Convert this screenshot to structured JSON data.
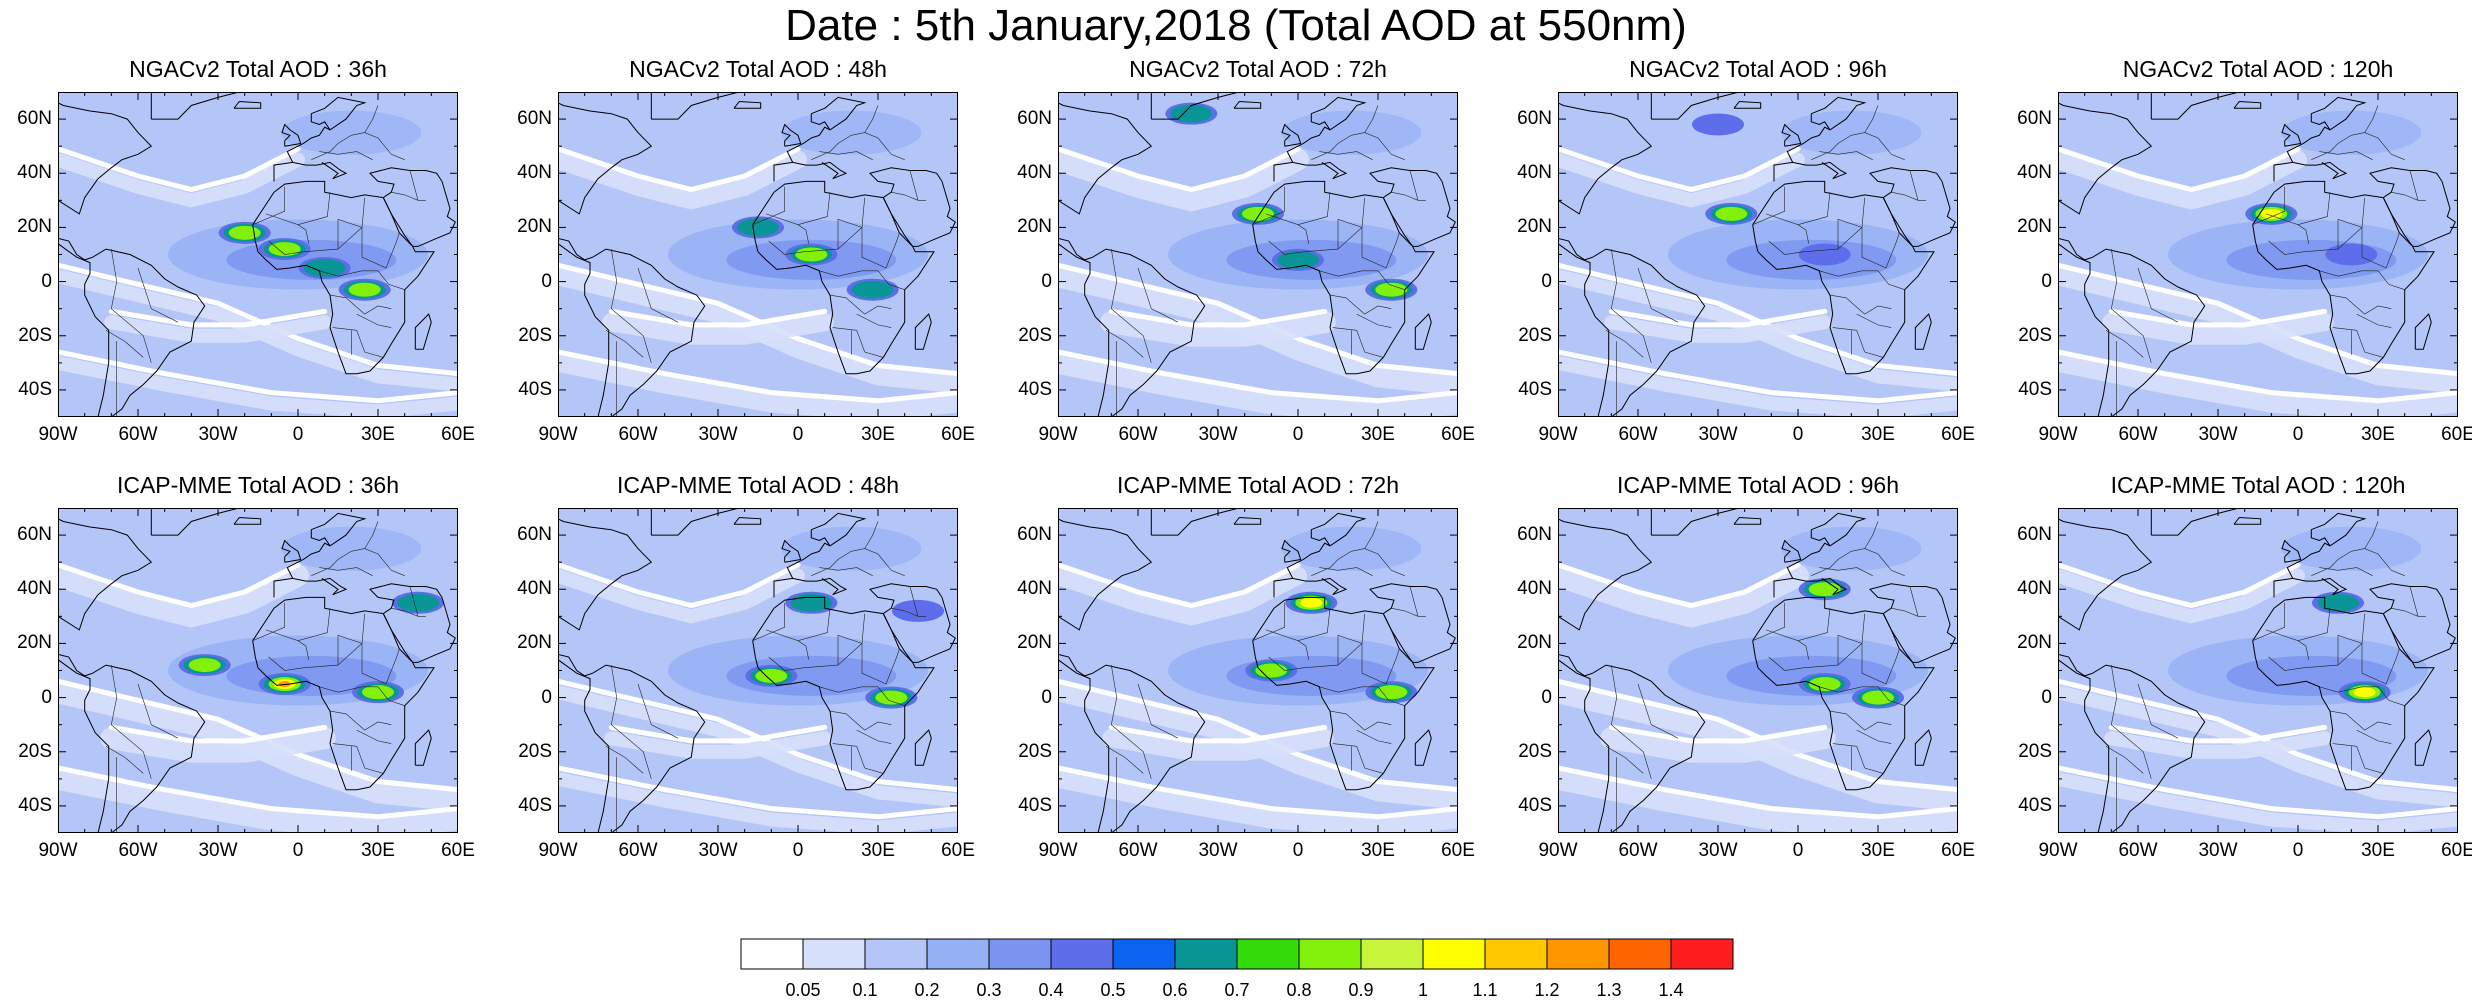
{
  "title": "Date : 5th January,2018 (Total AOD at 550nm)",
  "panels": [
    {
      "title": "NGACv2 Total AOD : 36h",
      "model": "NGACv2",
      "lead": "36h",
      "hotspots": [
        [
          -20,
          18,
          1.0
        ],
        [
          -5,
          12,
          0.9
        ],
        [
          25,
          -3,
          0.9
        ],
        [
          10,
          5,
          0.7
        ]
      ]
    },
    {
      "title": "NGACv2 Total AOD : 48h",
      "model": "NGACv2",
      "lead": "48h",
      "hotspots": [
        [
          -15,
          20,
          0.8
        ],
        [
          5,
          10,
          0.9
        ],
        [
          28,
          -3,
          0.8
        ]
      ]
    },
    {
      "title": "NGACv2 Total AOD : 72h",
      "model": "NGACv2",
      "lead": "72h",
      "hotspots": [
        [
          -40,
          62,
          0.8
        ],
        [
          -15,
          25,
          0.9
        ],
        [
          0,
          8,
          0.7
        ],
        [
          35,
          -3,
          0.9
        ]
      ]
    },
    {
      "title": "NGACv2 Total AOD : 96h",
      "model": "NGACv2",
      "lead": "96h",
      "hotspots": [
        [
          -25,
          25,
          1.0
        ],
        [
          -30,
          58,
          0.6
        ],
        [
          10,
          10,
          0.6
        ]
      ]
    },
    {
      "title": "NGACv2 Total AOD : 120h",
      "model": "NGACv2",
      "lead": "120h",
      "hotspots": [
        [
          -10,
          25,
          1.1
        ],
        [
          20,
          10,
          0.6
        ]
      ]
    },
    {
      "title": "ICAP-MME Total AOD : 36h",
      "model": "ICAP-MME",
      "lead": "36h",
      "hotspots": [
        [
          -35,
          12,
          0.9
        ],
        [
          -5,
          5,
          1.3
        ],
        [
          30,
          2,
          0.9
        ],
        [
          45,
          35,
          0.7
        ]
      ]
    },
    {
      "title": "ICAP-MME Total AOD : 48h",
      "model": "ICAP-MME",
      "lead": "48h",
      "hotspots": [
        [
          -10,
          8,
          1.0
        ],
        [
          35,
          0,
          0.9
        ],
        [
          5,
          35,
          0.8
        ],
        [
          45,
          32,
          0.6
        ]
      ]
    },
    {
      "title": "ICAP-MME Total AOD : 72h",
      "model": "ICAP-MME",
      "lead": "72h",
      "hotspots": [
        [
          5,
          35,
          1.2
        ],
        [
          -10,
          10,
          0.9
        ],
        [
          35,
          2,
          0.9
        ]
      ]
    },
    {
      "title": "ICAP-MME Total AOD : 96h",
      "model": "ICAP-MME",
      "lead": "96h",
      "hotspots": [
        [
          10,
          40,
          0.9
        ],
        [
          10,
          5,
          1.0
        ],
        [
          30,
          0,
          1.0
        ]
      ]
    },
    {
      "title": "ICAP-MME Total AOD : 120h",
      "model": "ICAP-MME",
      "lead": "120h",
      "hotspots": [
        [
          15,
          35,
          0.7
        ],
        [
          25,
          2,
          1.1
        ]
      ]
    }
  ],
  "lat_ticks": [
    "60N",
    "40N",
    "20N",
    "0",
    "20S",
    "40S"
  ],
  "lon_ticks": [
    "90W",
    "60W",
    "30W",
    "0",
    "30E",
    "60E"
  ],
  "colorbar": {
    "labels": [
      "0.05",
      "0.1",
      "0.2",
      "0.3",
      "0.4",
      "0.5",
      "0.6",
      "0.7",
      "0.8",
      "0.9",
      "1",
      "1.1",
      "1.2",
      "1.3",
      "1.4"
    ],
    "colors": [
      "#ffffff",
      "#d7e0fa",
      "#b4c6f7",
      "#96b0f5",
      "#7b94f0",
      "#5e6eea",
      "#0a64f0",
      "#0a9696",
      "#32dc0a",
      "#82f00a",
      "#c8f53c",
      "#ffff00",
      "#ffc800",
      "#ff9600",
      "#ff6400",
      "#ff1e1e"
    ]
  }
}
